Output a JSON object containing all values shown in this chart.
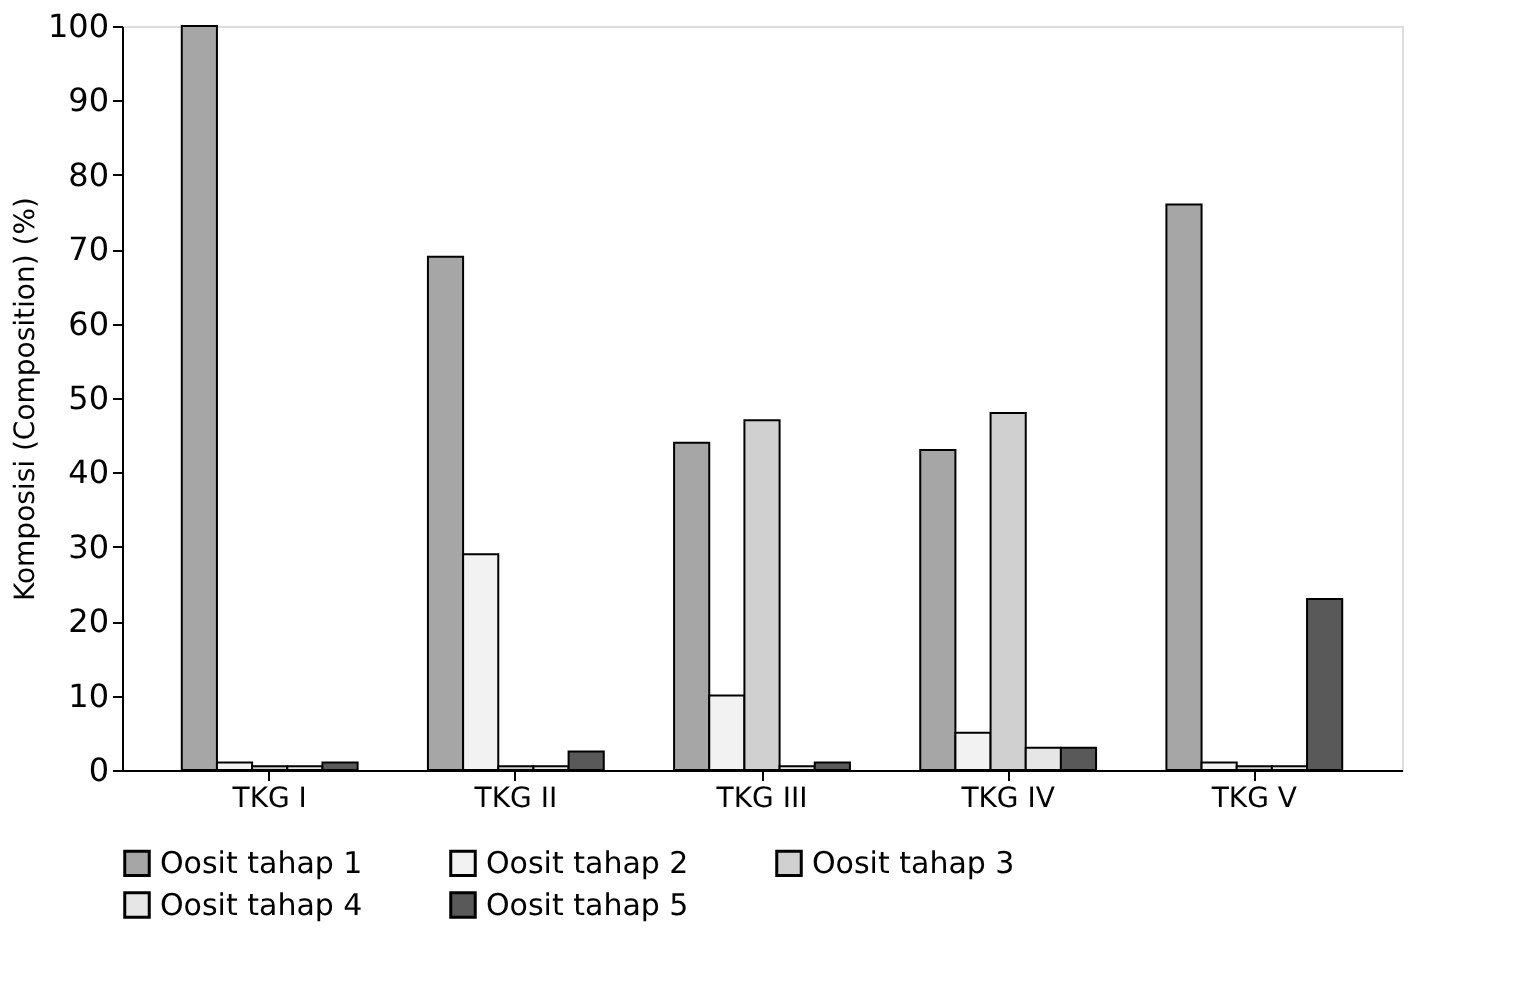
{
  "chart_data": {
    "type": "bar",
    "ylabel": "Komposisi (Composition) (%)",
    "categories": [
      "TKG I",
      "TKG II",
      "TKG III",
      "TKG IV",
      "TKG V"
    ],
    "series": [
      {
        "name": "Oosit tahap 1",
        "color": "#a6a6a6",
        "values": [
          100,
          69,
          44,
          43,
          76
        ]
      },
      {
        "name": "Oosit tahap 2",
        "color": "#f2f2f2",
        "values": [
          1,
          29,
          10,
          5,
          1
        ]
      },
      {
        "name": "Oosit tahap 3",
        "color": "#d0d0d0",
        "values": [
          0.5,
          0.5,
          47,
          48,
          0.5
        ]
      },
      {
        "name": "Oosit tahap 4",
        "color": "#e6e6e6",
        "values": [
          0.5,
          0.5,
          0.5,
          3,
          0.5
        ]
      },
      {
        "name": "Oosit tahap 5",
        "color": "#595959",
        "values": [
          1,
          2.5,
          1,
          3,
          23
        ]
      }
    ],
    "ylim": [
      0,
      100
    ],
    "yticks": [
      0,
      10,
      20,
      30,
      40,
      50,
      60,
      70,
      80,
      90,
      100
    ],
    "grid": false,
    "legend": "bottom"
  }
}
